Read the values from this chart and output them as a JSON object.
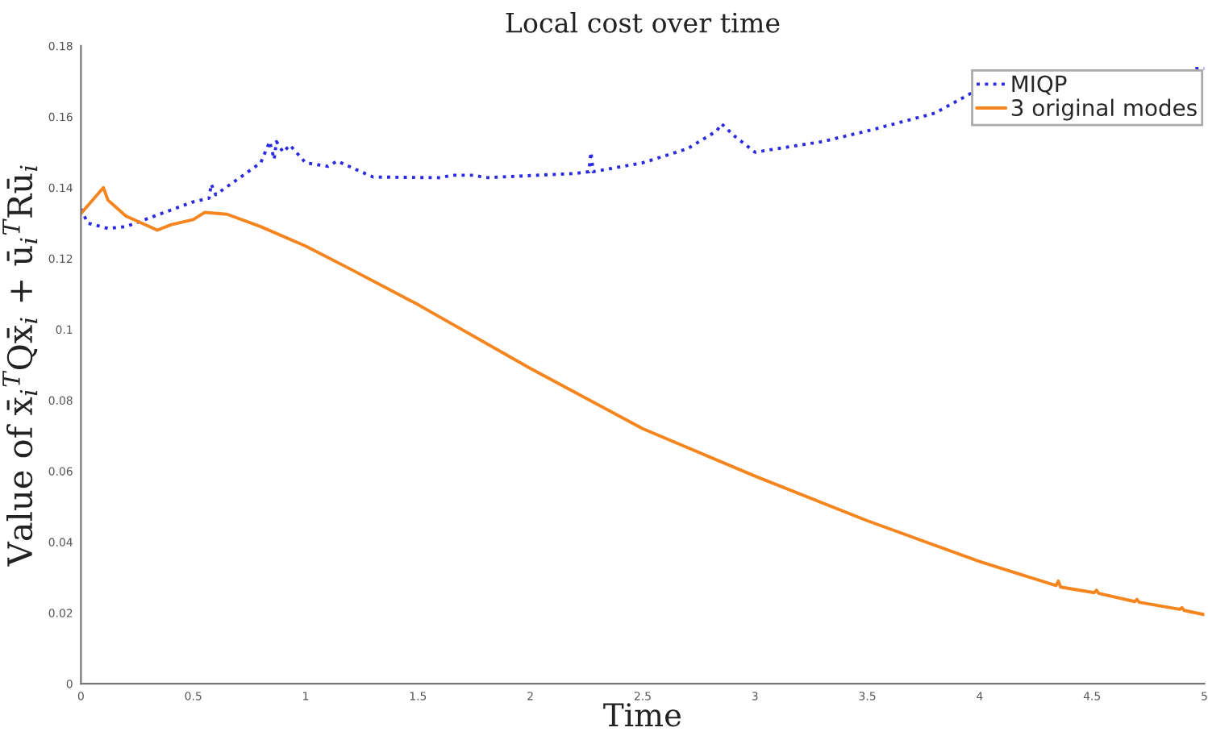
{
  "chart_data": {
    "type": "line",
    "title": "Local cost over time",
    "xlabel": "Time",
    "ylabel": "Value of x̄$_{i}$$^{T}$Qx̄$_{i}$ + ū$_{i}$$^{T}$Rū$_{i}$",
    "xlim": [
      0,
      5
    ],
    "ylim": [
      0,
      0.18
    ],
    "xticks": [
      0,
      0.5,
      1,
      1.5,
      2,
      2.5,
      3,
      3.5,
      4,
      4.5,
      5
    ],
    "yticks": [
      0,
      0.02,
      0.04,
      0.06,
      0.08,
      0.1,
      0.12,
      0.14,
      0.16,
      0.18
    ],
    "grid": false,
    "legend": "top right",
    "series": [
      {
        "name": "MIQP",
        "color": "#2a2ae0",
        "line_style": "dotted",
        "x": [
          0,
          0.03,
          0.12,
          0.2,
          0.5,
          0.57,
          0.58,
          0.6,
          0.8,
          0.84,
          0.86,
          0.87,
          0.9,
          0.93,
          1.0,
          1.1,
          1.14,
          1.3,
          1.6,
          1.65,
          1.75,
          1.8,
          2.2,
          2.26,
          2.27,
          2.28,
          2.5,
          2.7,
          2.83,
          2.85,
          2.87,
          2.9,
          3.0,
          3.3,
          3.5,
          3.8,
          4.03,
          4.5,
          4.96,
          5.0
        ],
        "values": [
          0.134,
          0.13,
          0.1285,
          0.129,
          0.136,
          0.137,
          0.141,
          0.138,
          0.147,
          0.153,
          0.148,
          0.153,
          0.15,
          0.152,
          0.147,
          0.146,
          0.1475,
          0.143,
          0.1428,
          0.1435,
          0.1435,
          0.1428,
          0.144,
          0.1445,
          0.15,
          0.1445,
          0.147,
          0.151,
          0.156,
          0.158,
          0.157,
          0.155,
          0.15,
          0.153,
          0.156,
          0.161,
          0.169,
          null,
          0.1736,
          0.1736
        ]
      },
      {
        "name": "3 original modes",
        "color": "#f5861f",
        "line_style": "solid",
        "x": [
          0,
          0.1,
          0.12,
          0.2,
          0.34,
          0.4,
          0.5,
          0.55,
          0.65,
          0.8,
          1.0,
          1.2,
          1.5,
          2.0,
          2.5,
          3.0,
          3.5,
          4.0,
          4.34,
          4.35,
          4.36,
          4.51,
          4.52,
          4.53,
          4.69,
          4.7,
          4.71,
          4.89,
          4.9,
          4.91,
          5.0
        ],
        "values": [
          0.1327,
          0.14,
          0.1365,
          0.132,
          0.128,
          0.1295,
          0.131,
          0.133,
          0.1325,
          0.129,
          0.1235,
          0.117,
          0.107,
          0.089,
          0.072,
          0.0586,
          0.046,
          0.0345,
          0.0277,
          0.029,
          0.0273,
          0.0257,
          0.0264,
          0.0255,
          0.0232,
          0.0238,
          0.023,
          0.021,
          0.0215,
          0.0207,
          0.0195
        ]
      }
    ]
  }
}
